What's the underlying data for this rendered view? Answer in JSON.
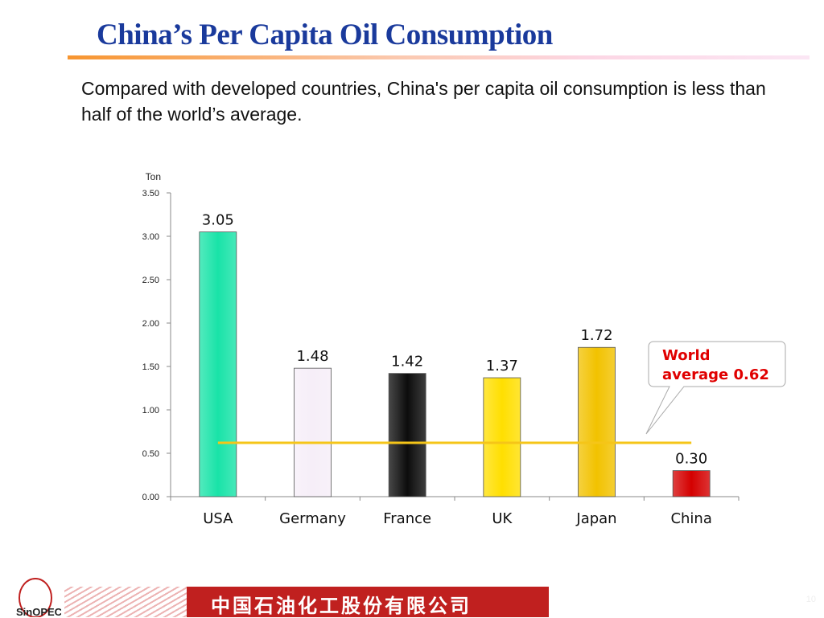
{
  "title": "China’s Per Capita Oil Consumption",
  "subtitle": "Compared with developed countries, China's per capita oil consumption is less than half of the world’s average.",
  "footer": {
    "company_name": "中国石油化工股份有限公司",
    "logo_text": "SINOPEC 中国石化",
    "page_number": "10"
  },
  "chart_data": {
    "type": "bar",
    "ylabel": "Ton",
    "ylim": [
      0,
      3.5
    ],
    "yticks": [
      "0.00",
      "0.50",
      "1.00",
      "1.50",
      "2.00",
      "2.50",
      "3.00",
      "3.50"
    ],
    "categories": [
      "USA",
      "Germany",
      "France",
      "UK",
      "Japan",
      "China"
    ],
    "values": [
      3.05,
      1.48,
      1.42,
      1.37,
      1.72,
      0.3
    ],
    "value_labels": [
      "3.05",
      "1.48",
      "1.42",
      "1.37",
      "1.72",
      "0.30"
    ],
    "bar_colors": [
      "#19e3a8",
      "#f6eef8",
      "#0c0c0c",
      "#ffdf00",
      "#f2c200",
      "#d40000"
    ],
    "reference_line": {
      "value": 0.62,
      "color": "#f5c518"
    },
    "callout": {
      "line1": "World",
      "line2": "average 0.62",
      "color": "#e00000"
    },
    "grid": false
  }
}
